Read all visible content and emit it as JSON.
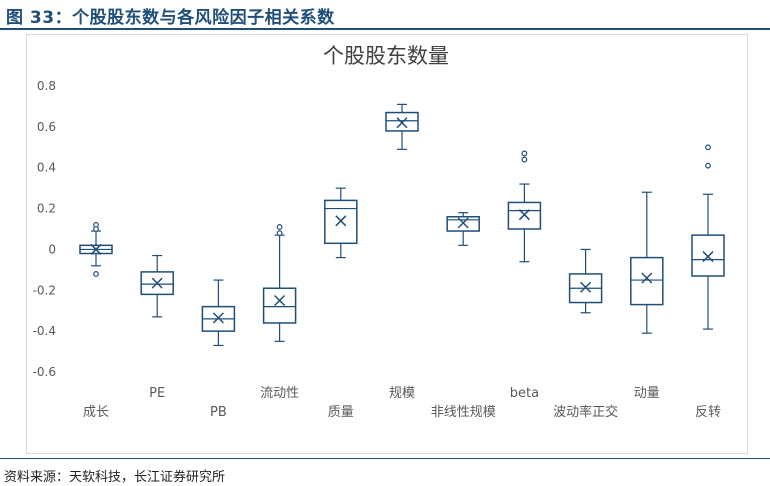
{
  "figure": {
    "title": "图 33：个股股东数与各风险因子相关系数",
    "source": "资料来源：天软科技，长江证券研究所"
  },
  "colors": {
    "title": "#1f4e79",
    "box_stroke": "#1f4e79",
    "axis_text": "#595959",
    "gridline": "#d9d9d9"
  },
  "chart_data": {
    "type": "boxplot",
    "title": "个股股东数量",
    "ylim": [
      -0.6,
      0.8
    ],
    "yticks": [
      "0.8",
      "0.6",
      "0.4",
      "0.2",
      "0",
      "-0.2",
      "-0.4",
      "-0.6"
    ],
    "grid": false,
    "legend": "none",
    "categories": [
      "成长",
      "PE",
      "PB",
      "流动性",
      "质量",
      "规模",
      "非线性规模",
      "beta",
      "波动率正交",
      "动量",
      "反转"
    ],
    "series": [
      {
        "category": "成长",
        "whisker_low": -0.08,
        "q1": -0.02,
        "median": 0.0,
        "q3": 0.02,
        "whisker_high": 0.09,
        "mean": 0.0,
        "outliers": [
          0.12,
          0.1,
          -0.12
        ]
      },
      {
        "category": "PE",
        "whisker_low": -0.33,
        "q1": -0.22,
        "median": -0.17,
        "q3": -0.11,
        "whisker_high": -0.03,
        "mean": -0.165,
        "outliers": []
      },
      {
        "category": "PB",
        "whisker_low": -0.47,
        "q1": -0.4,
        "median": -0.34,
        "q3": -0.28,
        "whisker_high": -0.15,
        "mean": -0.335,
        "outliers": []
      },
      {
        "category": "流动性",
        "whisker_low": -0.45,
        "q1": -0.36,
        "median": -0.28,
        "q3": -0.19,
        "whisker_high": 0.07,
        "mean": -0.25,
        "outliers": [
          0.08,
          0.11
        ]
      },
      {
        "category": "质量",
        "whisker_low": -0.04,
        "q1": 0.03,
        "median": 0.2,
        "q3": 0.24,
        "whisker_high": 0.3,
        "mean": 0.14,
        "outliers": []
      },
      {
        "category": "规模",
        "whisker_low": 0.49,
        "q1": 0.58,
        "median": 0.63,
        "q3": 0.67,
        "whisker_high": 0.71,
        "mean": 0.62,
        "outliers": []
      },
      {
        "category": "非线性规模",
        "whisker_low": 0.02,
        "q1": 0.09,
        "median": 0.145,
        "q3": 0.16,
        "whisker_high": 0.18,
        "mean": 0.13,
        "outliers": []
      },
      {
        "category": "beta",
        "whisker_low": -0.06,
        "q1": 0.1,
        "median": 0.19,
        "q3": 0.23,
        "whisker_high": 0.32,
        "mean": 0.17,
        "outliers": [
          0.44,
          0.47
        ]
      },
      {
        "category": "波动率正交",
        "whisker_low": -0.31,
        "q1": -0.26,
        "median": -0.19,
        "q3": -0.12,
        "whisker_high": 0.0,
        "mean": -0.185,
        "outliers": []
      },
      {
        "category": "动量",
        "whisker_low": -0.41,
        "q1": -0.27,
        "median": -0.15,
        "q3": -0.04,
        "whisker_high": 0.28,
        "mean": -0.14,
        "outliers": []
      },
      {
        "category": "反转",
        "whisker_low": -0.39,
        "q1": -0.13,
        "median": -0.05,
        "q3": 0.07,
        "whisker_high": 0.27,
        "mean": -0.035,
        "outliers": [
          0.41,
          0.5
        ]
      }
    ]
  }
}
